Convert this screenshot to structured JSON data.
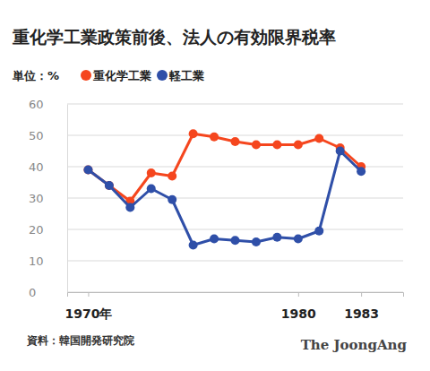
{
  "chart_data": {
    "type": "line",
    "title": "重化学工業政策前後、法人の有効限界税率",
    "y_label": "単位：%",
    "source": "資料：韓国開発研究院",
    "credit": "The JoongAng",
    "x": [
      1970,
      1971,
      1972,
      1973,
      1974,
      1975,
      1976,
      1977,
      1978,
      1979,
      1980,
      1981,
      1982,
      1983
    ],
    "series": [
      {
        "name": "重化学工業",
        "color": "#f5461e",
        "marker": "circle",
        "values": [
          39,
          34,
          29,
          38,
          37,
          50.5,
          49.5,
          48,
          47,
          47,
          47,
          49,
          46,
          40
        ]
      },
      {
        "name": "軽工業",
        "color": "#2f4fa8",
        "marker": "circle",
        "values": [
          39,
          34,
          27,
          33,
          29.5,
          15,
          17,
          16.5,
          16,
          17.5,
          17,
          19.5,
          45,
          38.5
        ]
      }
    ],
    "xlim": [
      1969,
      1985
    ],
    "xticks": [
      {
        "value": 1970,
        "label": "1970年"
      },
      1980,
      1983
    ],
    "ylim": [
      0,
      60
    ],
    "yticks": [
      0,
      10,
      20,
      30,
      40,
      50,
      60
    ],
    "grid": true,
    "legend": "top-left"
  }
}
